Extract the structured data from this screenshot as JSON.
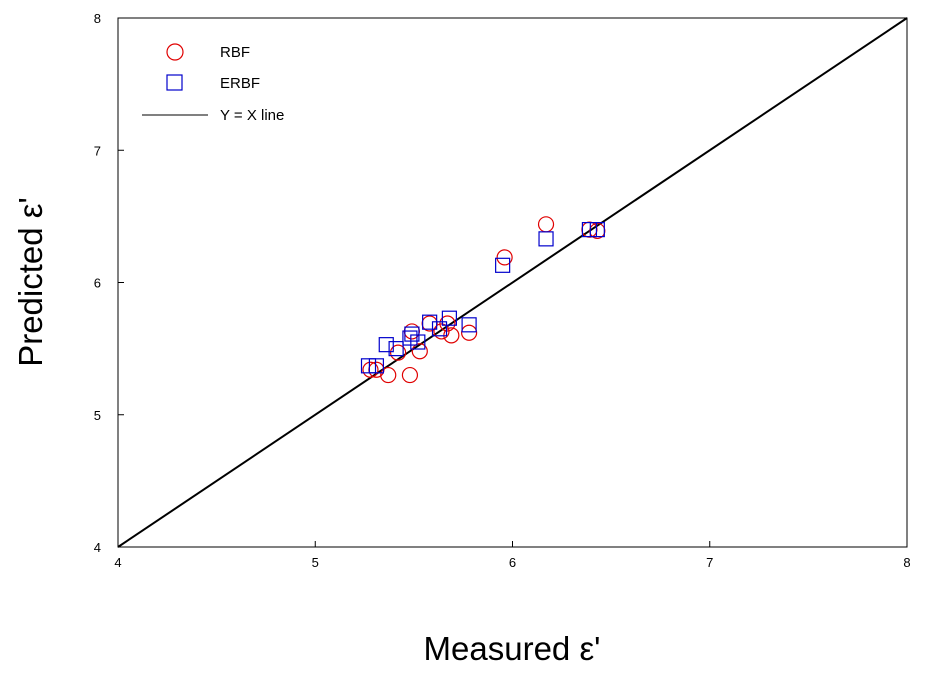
{
  "chart_data": {
    "type": "scatter",
    "title": "",
    "xlabel": "Measured ε'",
    "ylabel": "Predicted ε'",
    "xlim": [
      4,
      8
    ],
    "ylim": [
      4,
      8
    ],
    "x_ticks": [
      "4",
      "5",
      "6",
      "7",
      "8"
    ],
    "y_ticks": [
      "4",
      "5",
      "6",
      "7",
      "8"
    ],
    "grid": false,
    "legend_position": "top-left",
    "colors": {
      "rbf": "#e00000",
      "erbf": "#0000cc",
      "line": "#000000"
    },
    "series": [
      {
        "name": "RBF",
        "marker": "circle",
        "points": [
          [
            5.28,
            5.34
          ],
          [
            5.31,
            5.34
          ],
          [
            5.37,
            5.3
          ],
          [
            5.42,
            5.47
          ],
          [
            5.48,
            5.3
          ],
          [
            5.49,
            5.63
          ],
          [
            5.53,
            5.48
          ],
          [
            5.58,
            5.69
          ],
          [
            5.64,
            5.63
          ],
          [
            5.67,
            5.69
          ],
          [
            5.69,
            5.6
          ],
          [
            5.78,
            5.62
          ],
          [
            5.96,
            6.19
          ],
          [
            6.17,
            6.44
          ],
          [
            6.39,
            6.4
          ],
          [
            6.43,
            6.39
          ]
        ]
      },
      {
        "name": "ERBF",
        "marker": "square",
        "points": [
          [
            5.27,
            5.37
          ],
          [
            5.31,
            5.37
          ],
          [
            5.36,
            5.53
          ],
          [
            5.41,
            5.5
          ],
          [
            5.48,
            5.58
          ],
          [
            5.49,
            5.61
          ],
          [
            5.52,
            5.55
          ],
          [
            5.58,
            5.7
          ],
          [
            5.63,
            5.65
          ],
          [
            5.68,
            5.73
          ],
          [
            5.78,
            5.68
          ],
          [
            5.95,
            6.13
          ],
          [
            6.17,
            6.33
          ],
          [
            6.39,
            6.4
          ],
          [
            6.43,
            6.4
          ]
        ]
      },
      {
        "name": "Y = X line",
        "marker": "line",
        "points": [
          [
            4,
            4
          ],
          [
            8,
            8
          ]
        ]
      }
    ]
  }
}
